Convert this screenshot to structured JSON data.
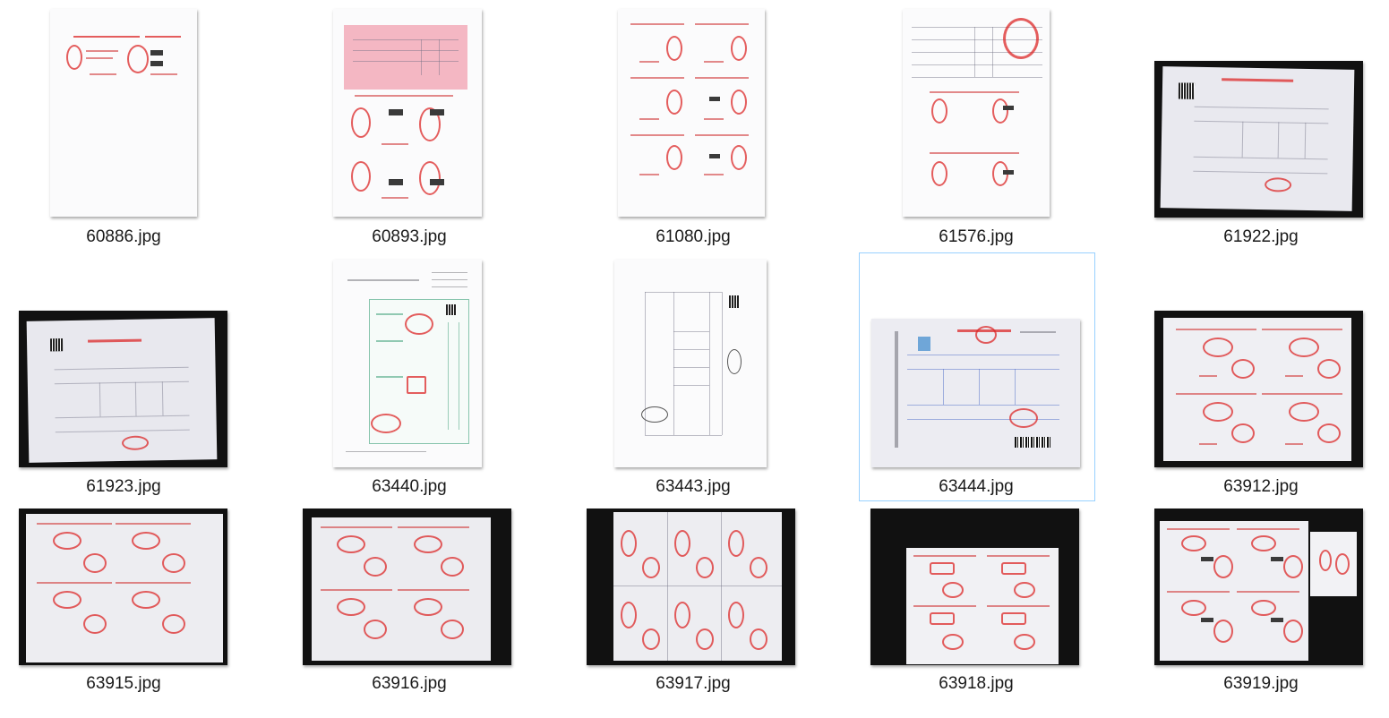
{
  "files": [
    {
      "name": "60886.jpg"
    },
    {
      "name": "60893.jpg"
    },
    {
      "name": "61080.jpg"
    },
    {
      "name": "61576.jpg"
    },
    {
      "name": "61922.jpg"
    },
    {
      "name": "61923.jpg"
    },
    {
      "name": "63440.jpg"
    },
    {
      "name": "63443.jpg"
    },
    {
      "name": "63444.jpg"
    },
    {
      "name": "63912.jpg"
    },
    {
      "name": "63915.jpg"
    },
    {
      "name": "63916.jpg"
    },
    {
      "name": "63917.jpg"
    },
    {
      "name": "63918.jpg"
    },
    {
      "name": "63919.jpg"
    }
  ],
  "selected_file": "63444.jpg",
  "colors": {
    "selection_border": "#99d1ff",
    "stamp_red": "#dc2828",
    "label_text": "#1a1a1a"
  }
}
